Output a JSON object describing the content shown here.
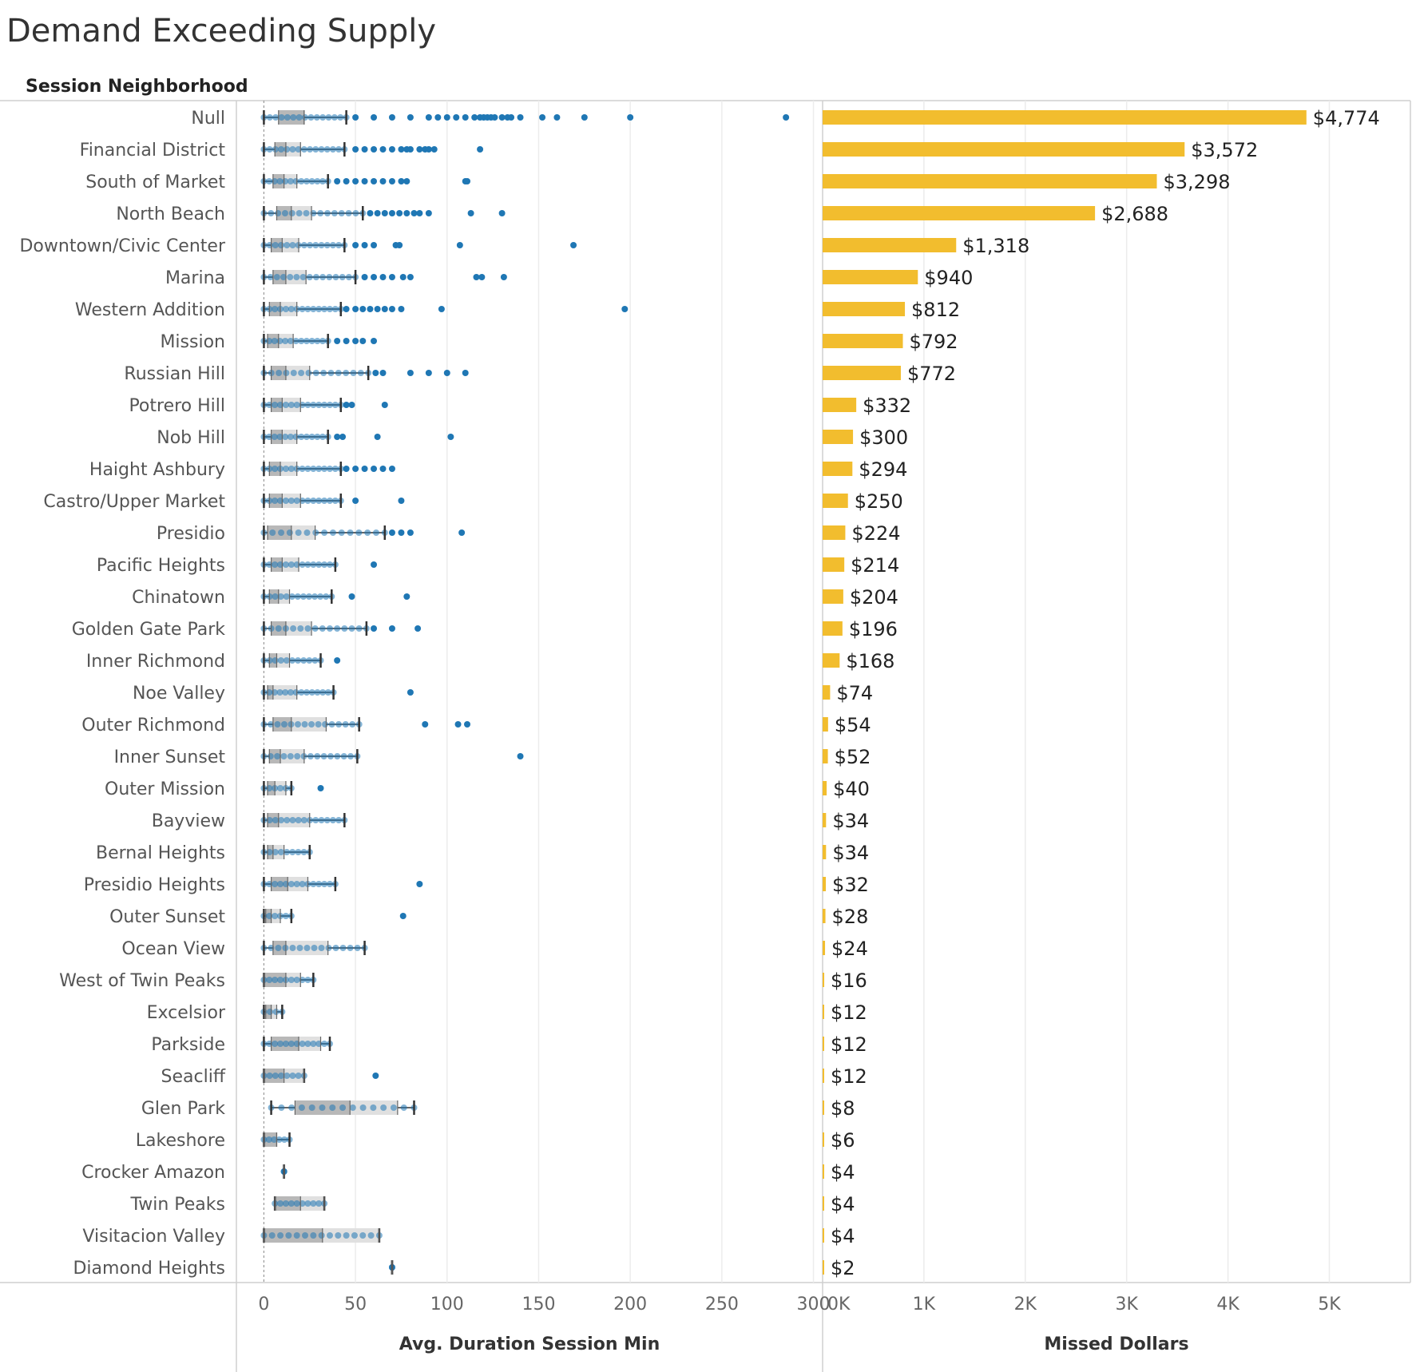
{
  "title": "Demand Exceeding Supply",
  "row_header": "Session Neighborhood",
  "chart_data": [
    {
      "type": "boxplot",
      "xlabel": "Avg. Duration Session Min",
      "xlim": [
        -15,
        305
      ],
      "ticks": [
        0,
        50,
        100,
        150,
        200,
        250,
        300
      ],
      "grid": true,
      "colors": {
        "points": "#1f77b4",
        "box_dark": "#b8b8b8",
        "box_light": "#e0e0e0",
        "whisker": "#333333"
      },
      "categories": [
        "Null",
        "Financial District",
        "South of Market",
        "North Beach",
        "Downtown/Civic Center",
        "Marina",
        "Western Addition",
        "Mission",
        "Russian Hill",
        "Potrero Hill",
        "Nob Hill",
        "Haight Ashbury",
        "Castro/Upper Market",
        "Presidio",
        "Pacific Heights",
        "Chinatown",
        "Golden Gate Park",
        "Inner Richmond",
        "Noe Valley",
        "Outer Richmond",
        "Inner Sunset",
        "Outer Mission",
        "Bayview",
        "Bernal Heights",
        "Presidio Heights",
        "Outer Sunset",
        "Ocean View",
        "West of Twin Peaks",
        "Excelsior",
        "Parkside",
        "Seacliff",
        "Glen Park",
        "Lakeshore",
        "Crocker Amazon",
        "Twin Peaks",
        "Visitacion Valley",
        "Diamond Heights"
      ],
      "boxes": [
        {
          "min": 0,
          "q1": 8,
          "median": 22,
          "q3": 22,
          "max": 45,
          "outliers": [
            50,
            60,
            70,
            80,
            90,
            95,
            100,
            105,
            110,
            115,
            118,
            120,
            122,
            124,
            126,
            130,
            133,
            135,
            140,
            152,
            160,
            175,
            200,
            285
          ]
        },
        {
          "min": 0,
          "q1": 6,
          "median": 12,
          "q3": 20,
          "max": 44,
          "outliers": [
            50,
            55,
            60,
            65,
            70,
            75,
            78,
            80,
            85,
            88,
            90,
            93,
            118
          ]
        },
        {
          "min": 0,
          "q1": 5,
          "median": 11,
          "q3": 18,
          "max": 35,
          "outliers": [
            40,
            45,
            50,
            55,
            60,
            65,
            70,
            75,
            78,
            110,
            111
          ]
        },
        {
          "min": 0,
          "q1": 7,
          "median": 15,
          "q3": 26,
          "max": 54,
          "outliers": [
            58,
            62,
            66,
            70,
            74,
            78,
            82,
            85,
            90,
            113,
            130
          ]
        },
        {
          "min": 0,
          "q1": 4,
          "median": 10,
          "q3": 19,
          "max": 44,
          "outliers": [
            50,
            55,
            60,
            72,
            74,
            107,
            169
          ]
        },
        {
          "min": 0,
          "q1": 5,
          "median": 12,
          "q3": 23,
          "max": 50,
          "outliers": [
            55,
            60,
            65,
            70,
            76,
            80,
            116,
            119,
            131
          ]
        },
        {
          "min": 0,
          "q1": 3,
          "median": 9,
          "q3": 18,
          "max": 42,
          "outliers": [
            45,
            50,
            54,
            58,
            62,
            66,
            70,
            75,
            97,
            197
          ]
        },
        {
          "min": 0,
          "q1": 2,
          "median": 8,
          "q3": 16,
          "max": 35,
          "outliers": [
            40,
            45,
            50,
            54,
            60
          ]
        },
        {
          "min": 0,
          "q1": 4,
          "median": 12,
          "q3": 25,
          "max": 57,
          "outliers": [
            61,
            65,
            80,
            90,
            100,
            110
          ]
        },
        {
          "min": 0,
          "q1": 4,
          "median": 10,
          "q3": 20,
          "max": 42,
          "outliers": [
            45,
            48,
            66
          ]
        },
        {
          "min": 0,
          "q1": 4,
          "median": 10,
          "q3": 18,
          "max": 35,
          "outliers": [
            40,
            43,
            62,
            102
          ]
        },
        {
          "min": 0,
          "q1": 3,
          "median": 9,
          "q3": 18,
          "max": 42,
          "outliers": [
            45,
            50,
            55,
            60,
            65,
            70
          ]
        },
        {
          "min": 0,
          "q1": 3,
          "median": 10,
          "q3": 20,
          "max": 42,
          "outliers": [
            50,
            75
          ]
        },
        {
          "min": 0,
          "q1": 2,
          "median": 15,
          "q3": 28,
          "max": 66,
          "outliers": [
            70,
            75,
            80,
            108
          ]
        },
        {
          "min": 0,
          "q1": 4,
          "median": 10,
          "q3": 19,
          "max": 39,
          "outliers": [
            60
          ]
        },
        {
          "min": 0,
          "q1": 3,
          "median": 8,
          "q3": 14,
          "max": 37,
          "outliers": [
            48,
            78
          ]
        },
        {
          "min": 0,
          "q1": 4,
          "median": 12,
          "q3": 26,
          "max": 56,
          "outliers": [
            60,
            70,
            84
          ]
        },
        {
          "min": 0,
          "q1": 3,
          "median": 7,
          "q3": 14,
          "max": 31,
          "outliers": [
            40
          ]
        },
        {
          "min": 0,
          "q1": 2,
          "median": 5,
          "q3": 18,
          "max": 38,
          "outliers": [
            80
          ]
        },
        {
          "min": 0,
          "q1": 5,
          "median": 15,
          "q3": 34,
          "max": 52,
          "outliers": [
            88,
            106,
            111
          ]
        },
        {
          "min": 0,
          "q1": 3,
          "median": 9,
          "q3": 22,
          "max": 51,
          "outliers": [
            140
          ]
        },
        {
          "min": 0,
          "q1": 2,
          "median": 6,
          "q3": 12,
          "max": 15,
          "outliers": [
            31
          ]
        },
        {
          "min": 0,
          "q1": 2,
          "median": 8,
          "q3": 25,
          "max": 44,
          "outliers": []
        },
        {
          "min": 0,
          "q1": 2,
          "median": 5,
          "q3": 11,
          "max": 25,
          "outliers": []
        },
        {
          "min": 0,
          "q1": 4,
          "median": 13,
          "q3": 24,
          "max": 39,
          "outliers": [
            85
          ]
        },
        {
          "min": 0,
          "q1": 1,
          "median": 4,
          "q3": 9,
          "max": 15,
          "outliers": [
            76
          ]
        },
        {
          "min": 0,
          "q1": 5,
          "median": 12,
          "q3": 35,
          "max": 55,
          "outliers": []
        },
        {
          "min": 0,
          "q1": 0,
          "median": 12,
          "q3": 20,
          "max": 27,
          "outliers": []
        },
        {
          "min": 0,
          "q1": 1,
          "median": 4,
          "q3": 7,
          "max": 10,
          "outliers": []
        },
        {
          "min": 0,
          "q1": 4,
          "median": 19,
          "q3": 31,
          "max": 36,
          "outliers": []
        },
        {
          "min": 0,
          "q1": 0,
          "median": 11,
          "q3": 22,
          "max": 22,
          "outliers": [
            61
          ]
        },
        {
          "min": 4,
          "q1": 17,
          "median": 47,
          "q3": 73,
          "max": 82,
          "outliers": []
        },
        {
          "min": 0,
          "q1": 0,
          "median": 7,
          "q3": 7,
          "max": 14,
          "outliers": []
        },
        {
          "min": 11,
          "q1": 11,
          "median": 11,
          "q3": 11,
          "max": 11,
          "outliers": []
        },
        {
          "min": 6,
          "q1": 6,
          "median": 20,
          "q3": 33,
          "max": 33,
          "outliers": []
        },
        {
          "min": 0,
          "q1": 0,
          "median": 32,
          "q3": 63,
          "max": 63,
          "outliers": []
        },
        {
          "min": 70,
          "q1": 70,
          "median": 70,
          "q3": 70,
          "max": 70,
          "outliers": []
        }
      ]
    },
    {
      "type": "bar",
      "orientation": "horizontal",
      "xlabel": "Missed Dollars",
      "xlim": [
        0,
        5800
      ],
      "ticks": [
        0,
        1000,
        2000,
        3000,
        4000,
        5000
      ],
      "tick_labels": [
        "0K",
        "1K",
        "2K",
        "3K",
        "4K",
        "5K"
      ],
      "grid": true,
      "color": "#f2bd2e",
      "values": [
        4774,
        3572,
        3298,
        2688,
        1318,
        940,
        812,
        792,
        772,
        332,
        300,
        294,
        250,
        224,
        214,
        204,
        196,
        168,
        74,
        54,
        52,
        40,
        34,
        34,
        32,
        28,
        24,
        16,
        12,
        12,
        12,
        8,
        6,
        4,
        4,
        4,
        2
      ],
      "labels": [
        "$4,774",
        "$3,572",
        "$3,298",
        "$2,688",
        "$1,318",
        "$940",
        "$812",
        "$792",
        "$772",
        "$332",
        "$300",
        "$294",
        "$250",
        "$224",
        "$214",
        "$204",
        "$196",
        "$168",
        "$74",
        "$54",
        "$52",
        "$40",
        "$34",
        "$34",
        "$32",
        "$28",
        "$24",
        "$16",
        "$12",
        "$12",
        "$12",
        "$8",
        "$6",
        "$4",
        "$4",
        "$4",
        "$2"
      ]
    }
  ]
}
